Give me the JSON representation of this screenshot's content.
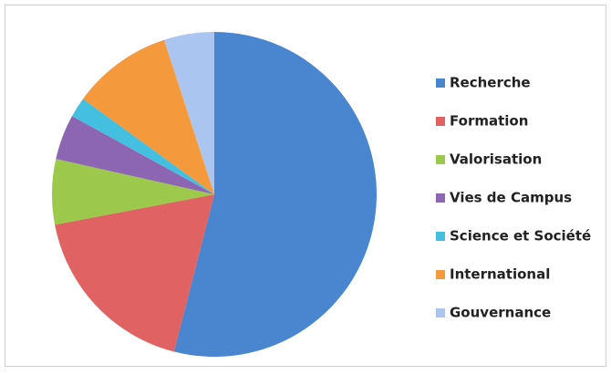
{
  "chart_data": {
    "type": "pie",
    "categories": [
      "Recherche",
      "Formation",
      "Valorisation",
      "Vies de Campus",
      "Science et Société",
      "International",
      "Gouvernance"
    ],
    "values": [
      54,
      18,
      6.5,
      4.5,
      2,
      10,
      5
    ],
    "colors": [
      "#4a86cf",
      "#e06262",
      "#9cc94c",
      "#8c66b2",
      "#45bfe0",
      "#f59a3c",
      "#a9c5f0"
    ],
    "legend": "right"
  }
}
